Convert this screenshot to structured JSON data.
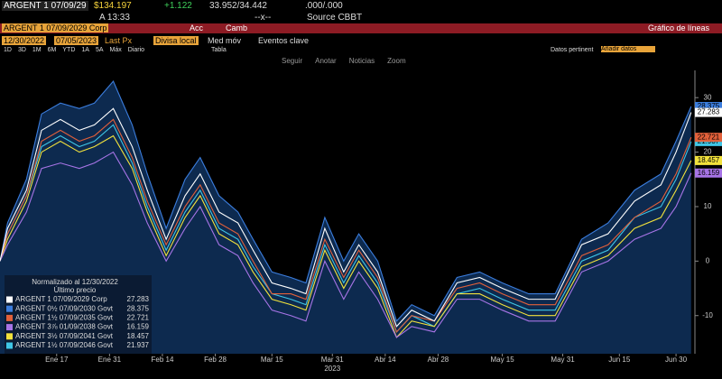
{
  "header": {
    "ticker": "ARGENT 1 07/09/29",
    "price": "$134.197",
    "change": "+1.122",
    "bid_ask": "33.952/34.442",
    "yield": ".000/.000",
    "time": "A 13:33",
    "sep": "--x--",
    "source": "Source CBBT"
  },
  "menu": {
    "security": "ARGENT 1 07/09/2029 Corp",
    "actions": "Acc",
    "compare": "Camb",
    "view": "Gráfico de líneas"
  },
  "settings": {
    "start": "12/30/2022",
    "end": "07/05/2023",
    "field": "Last Px",
    "currency": "Divisa local",
    "moving_avg": "Med móv",
    "events": "Eventos clave"
  },
  "ranges": {
    "items": [
      "1D",
      "3D",
      "1M",
      "6M",
      "YTD",
      "1A",
      "5A",
      "Máx",
      "Diario"
    ],
    "table": "Tabla",
    "data": "Datos pertinent",
    "add": "Añadir datos"
  },
  "toolbar": {
    "items": [
      "Seguir",
      "Anotar",
      "Noticias",
      "Zoom"
    ]
  },
  "chart_data": {
    "type": "line",
    "legend_title": "Normalizado al 12/30/2022",
    "legend_subtitle": "Último precio",
    "xlabel": "2023",
    "x": [
      "2023-01-02",
      "2023-01-04",
      "2023-01-09",
      "2023-01-13",
      "2023-01-18",
      "2023-01-23",
      "2023-01-27",
      "2023-02-01",
      "2023-02-06",
      "2023-02-10",
      "2023-02-15",
      "2023-02-20",
      "2023-02-24",
      "2023-03-01",
      "2023-03-06",
      "2023-03-10",
      "2023-03-15",
      "2023-03-20",
      "2023-03-24",
      "2023-03-29",
      "2023-04-03",
      "2023-04-07",
      "2023-04-12",
      "2023-04-17",
      "2023-04-21",
      "2023-04-27",
      "2023-05-03",
      "2023-05-09",
      "2023-05-15",
      "2023-05-22",
      "2023-05-29",
      "2023-06-05",
      "2023-06-12",
      "2023-06-19",
      "2023-06-26",
      "2023-06-30",
      "2023-07-04"
    ],
    "xlim": [
      "2023-01-02",
      "2023-07-05"
    ],
    "xticks": [
      {
        "value": "2023-01-17",
        "label": "Ene 17"
      },
      {
        "value": "2023-01-31",
        "label": "Ene 31"
      },
      {
        "value": "2023-02-14",
        "label": "Feb 14"
      },
      {
        "value": "2023-02-28",
        "label": "Feb 28"
      },
      {
        "value": "2023-03-15",
        "label": "Mar 15"
      },
      {
        "value": "2023-03-31",
        "label": "Mar 31"
      },
      {
        "value": "2023-04-14",
        "label": "Abr 14"
      },
      {
        "value": "2023-04-28",
        "label": "Abr 28"
      },
      {
        "value": "2023-05-15",
        "label": "May 15"
      },
      {
        "value": "2023-05-31",
        "label": "May 31"
      },
      {
        "value": "2023-06-15",
        "label": "Jun 15"
      },
      {
        "value": "2023-06-30",
        "label": "Jun 30"
      }
    ],
    "ylim": [
      -17,
      35
    ],
    "yticks": [
      -10,
      0,
      10,
      20,
      30
    ],
    "area_color": "#0d2a4f",
    "series": [
      {
        "name": "ARGENT 1 07/09/2029 Corp",
        "color": "#ffffff",
        "values": [
          0,
          6,
          13,
          24,
          26,
          24,
          25,
          28,
          21,
          13,
          4,
          12,
          16,
          9,
          7,
          2,
          -4,
          -5,
          -6,
          6,
          -2,
          3,
          -2,
          -12,
          -9,
          -11,
          -4,
          -3,
          -5,
          -7,
          -7,
          3,
          5,
          11,
          14,
          20,
          27.283
        ]
      },
      {
        "name": "ARGENT 0½ 07/09/2030 Govt",
        "color": "#3b7ddd",
        "values": [
          0,
          7,
          15,
          27,
          29,
          28,
          29,
          33,
          25,
          16,
          6,
          15,
          19,
          12,
          9,
          4,
          -2,
          -3,
          -4,
          8,
          0,
          5,
          0,
          -11,
          -8,
          -10,
          -3,
          -2,
          -4,
          -6,
          -6,
          4,
          7,
          13,
          16,
          22,
          28.375
        ]
      },
      {
        "name": "ARGENT 1½ 07/09/2035 Govt",
        "color": "#e2603a",
        "values": [
          0,
          5,
          12,
          22,
          24,
          22,
          23,
          26,
          19,
          11,
          3,
          10,
          14,
          7,
          5,
          0,
          -6,
          -6,
          -7,
          4,
          -3,
          2,
          -3,
          -13,
          -10,
          -11,
          -5,
          -4,
          -6,
          -8,
          -8,
          1,
          3,
          8,
          11,
          16,
          22.721
        ]
      },
      {
        "name": "ARGENT 3⅞ 01/09/2038 Govt",
        "color": "#a774e6",
        "values": [
          0,
          3,
          9,
          17,
          18,
          17,
          18,
          20,
          14,
          7,
          0,
          6,
          10,
          3,
          1,
          -4,
          -9,
          -10,
          -11,
          0,
          -7,
          -2,
          -7,
          -14,
          -12,
          -13,
          -7,
          -7,
          -9,
          -11,
          -11,
          -2,
          0,
          4,
          6,
          10,
          16.159
        ]
      },
      {
        "name": "ARGENT 3½ 07/09/2041 Govt",
        "color": "#f2e23c",
        "values": [
          0,
          4,
          11,
          20,
          22,
          20,
          21,
          23,
          17,
          9,
          1,
          8,
          12,
          5,
          3,
          -2,
          -7,
          -8,
          -9,
          2,
          -5,
          0,
          -5,
          -14,
          -11,
          -12,
          -6,
          -6,
          -8,
          -10,
          -10,
          -1,
          1,
          6,
          8,
          13,
          18.457
        ]
      },
      {
        "name": "ARGENT 1½ 07/09/2046 Govt",
        "color": "#3fc6e6",
        "values": [
          0,
          5,
          12,
          21,
          23,
          21,
          22,
          25,
          18,
          10,
          2,
          9,
          13,
          6,
          4,
          -1,
          -6,
          -7,
          -8,
          3,
          -4,
          1,
          -4,
          -13,
          -10,
          -12,
          -6,
          -5,
          -7,
          -9,
          -9,
          0,
          2,
          8,
          10,
          15,
          21.937
        ]
      }
    ]
  }
}
